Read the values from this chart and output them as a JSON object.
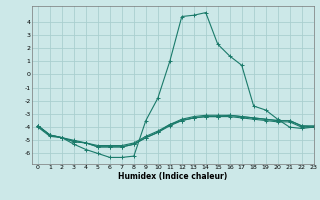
{
  "xlabel": "Humidex (Indice chaleur)",
  "bg_color": "#cce8e8",
  "grid_color": "#aacfcf",
  "line_color": "#1a7a6a",
  "xlim": [
    -0.5,
    23
  ],
  "ylim": [
    -6.8,
    5.2
  ],
  "xticks": [
    0,
    1,
    2,
    3,
    4,
    5,
    6,
    7,
    8,
    9,
    10,
    11,
    12,
    13,
    14,
    15,
    16,
    17,
    18,
    19,
    20,
    21,
    22,
    23
  ],
  "yticks": [
    -6,
    -5,
    -4,
    -3,
    -2,
    -1,
    0,
    1,
    2,
    3,
    4
  ],
  "lines": [
    [
      -4.0,
      -4.7,
      -4.8,
      -5.3,
      -5.7,
      -6.0,
      -6.3,
      -6.3,
      -6.2,
      -3.5,
      -1.8,
      1.0,
      4.4,
      4.5,
      4.7,
      2.3,
      1.4,
      0.7,
      -2.4,
      -2.7,
      -3.4,
      -4.0,
      -4.1,
      -4.0
    ],
    [
      -3.9,
      -4.6,
      -4.8,
      -5.1,
      -5.2,
      -5.5,
      -5.5,
      -5.5,
      -5.3,
      -4.8,
      -4.4,
      -3.8,
      -3.4,
      -3.2,
      -3.1,
      -3.1,
      -3.1,
      -3.2,
      -3.3,
      -3.4,
      -3.5,
      -3.5,
      -3.9,
      -4.0
    ],
    [
      -3.9,
      -4.6,
      -4.8,
      -5.1,
      -5.2,
      -5.5,
      -5.5,
      -5.5,
      -5.3,
      -4.8,
      -4.4,
      -3.9,
      -3.5,
      -3.3,
      -3.2,
      -3.2,
      -3.2,
      -3.3,
      -3.4,
      -3.5,
      -3.6,
      -3.6,
      -4.0,
      -4.0
    ],
    [
      -3.9,
      -4.6,
      -4.8,
      -5.0,
      -5.2,
      -5.4,
      -5.4,
      -5.4,
      -5.2,
      -4.7,
      -4.3,
      -3.8,
      -3.5,
      -3.3,
      -3.2,
      -3.2,
      -3.1,
      -3.2,
      -3.3,
      -3.4,
      -3.5,
      -3.5,
      -3.9,
      -3.9
    ]
  ]
}
